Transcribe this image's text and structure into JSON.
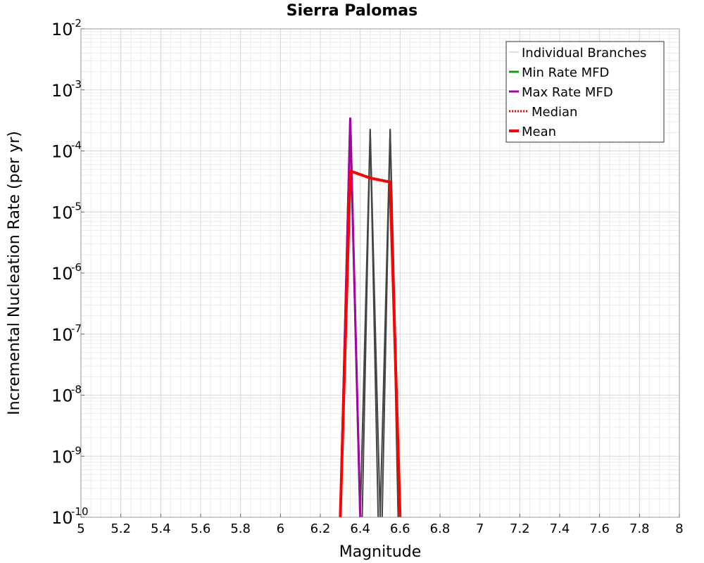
{
  "chart_data": {
    "type": "line",
    "title": "Sierra Palomas",
    "xlabel": "Magnitude",
    "ylabel": "Incremental Nucleation Rate (per yr)",
    "x_scale": "linear",
    "y_scale": "log",
    "xlim": [
      5,
      8
    ],
    "ylim": [
      1e-10,
      0.01
    ],
    "x_ticks": [
      "5",
      "5.2",
      "5.4",
      "5.6",
      "5.8",
      "6",
      "6.2",
      "6.4",
      "6.6",
      "6.8",
      "7",
      "7.2",
      "7.4",
      "7.6",
      "7.8",
      "8"
    ],
    "y_tick_exponents": [
      "-10",
      "-9",
      "-8",
      "-7",
      "-6",
      "-5",
      "-4",
      "-3",
      "-2"
    ],
    "y_tick_base": "10",
    "grid": true,
    "legend_position": "top-right",
    "series": [
      {
        "name": "Individual Branches",
        "color": "#444444",
        "style": "thin",
        "branches": [
          {
            "x": [
              6.3,
              6.35,
              6.4
            ],
            "y": [
              1e-10,
              0.00035,
              1e-10
            ]
          },
          {
            "x": [
              6.4,
              6.45,
              6.5
            ],
            "y": [
              1e-10,
              0.00023,
              1e-10
            ]
          },
          {
            "x": [
              6.41,
              6.45,
              6.49
            ],
            "y": [
              1e-10,
              0.00022,
              1e-10
            ]
          },
          {
            "x": [
              6.5,
              6.55,
              6.6
            ],
            "y": [
              1e-10,
              0.00023,
              1e-10
            ]
          },
          {
            "x": [
              6.51,
              6.55,
              6.59
            ],
            "y": [
              1e-10,
              0.00022,
              1e-10
            ]
          }
        ]
      },
      {
        "name": "Min Rate MFD",
        "color": "#00aa00",
        "style": "solid",
        "x": [
          6.3,
          6.35,
          6.4
        ],
        "y": [
          1e-10,
          0.00035,
          1e-10
        ]
      },
      {
        "name": "Max Rate MFD",
        "color": "#aa00aa",
        "style": "solid",
        "x": [
          6.3,
          6.35,
          6.4
        ],
        "y": [
          1e-10,
          0.00035,
          1e-10
        ]
      },
      {
        "name": "Median",
        "color": "#ff0000",
        "style": "dotted",
        "x": [],
        "y": []
      },
      {
        "name": "Mean",
        "color": "#ff0000",
        "style": "thick",
        "x": [
          6.3,
          6.35,
          6.45,
          6.55,
          6.6
        ],
        "y": [
          1e-10,
          4.7e-05,
          3.6e-05,
          3.1e-05,
          1e-10
        ]
      }
    ]
  }
}
